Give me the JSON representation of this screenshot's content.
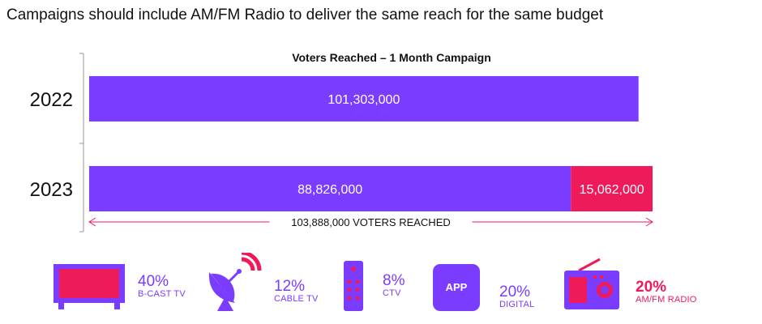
{
  "headline": "Campaigns should include AM/FM Radio to deliver the same reach for the same budget",
  "colors": {
    "purple": "#7a3cff",
    "pink": "#ef1a5a",
    "text": "#111111"
  },
  "chart_data": {
    "type": "bar",
    "orientation": "horizontal",
    "stacked": true,
    "title": "Voters Reached – 1 Month Campaign",
    "categories": [
      "2022",
      "2023"
    ],
    "series": [
      {
        "values": [
          101303000,
          88826000
        ],
        "labels": [
          "101,303,000",
          "88,826,000"
        ],
        "color": "#7a3cff"
      },
      {
        "values": [
          0,
          15062000
        ],
        "labels": [
          "",
          "15,062,000"
        ],
        "color": "#ef1a5a"
      }
    ],
    "xlim": [
      0,
      103888000
    ],
    "annotation": "103,888,000 VOTERS REACHED",
    "grid": false
  },
  "legend": [
    {
      "icon": "tv-icon",
      "pct": "40%",
      "label": "B-CAST TV",
      "highlight": false
    },
    {
      "icon": "satellite-dish-icon",
      "pct": "12%",
      "label": "CABLE TV",
      "highlight": false
    },
    {
      "icon": "remote-control-icon",
      "pct": "8%",
      "label": "CTV",
      "highlight": false
    },
    {
      "icon": "app-icon",
      "icon_text": "APP",
      "pct": "20%",
      "label": "DIGITAL",
      "highlight": false
    },
    {
      "icon": "radio-icon",
      "pct": "20%",
      "label": "AM/FM RADIO",
      "highlight": true
    }
  ]
}
